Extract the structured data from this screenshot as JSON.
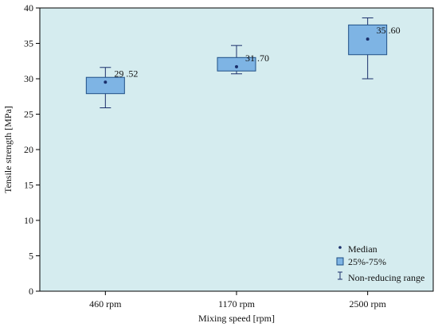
{
  "chart_data": {
    "type": "box",
    "xlabel": "Mixing speed [rpm]",
    "ylabel": "Tensile strength [MPa]",
    "ylim": [
      0,
      40
    ],
    "yticks": [
      0,
      5,
      10,
      15,
      20,
      25,
      30,
      35,
      40
    ],
    "categories": [
      "460 rpm",
      "1170 rpm",
      "2500 rpm"
    ],
    "boxes": [
      {
        "category": "460 rpm",
        "min": 25.9,
        "q1": 27.9,
        "median": 29.52,
        "q3": 30.2,
        "max": 31.6,
        "label": "29 .52"
      },
      {
        "category": "1170 rpm",
        "min": 30.7,
        "q1": 31.1,
        "median": 31.7,
        "q3": 33.0,
        "max": 34.7,
        "label": "31 .70"
      },
      {
        "category": "2500 rpm",
        "min": 30.0,
        "q1": 33.4,
        "median": 35.6,
        "q3": 37.6,
        "max": 38.6,
        "label": "35 .60"
      }
    ],
    "legend": {
      "position": "bottom-right",
      "items": [
        "Median",
        "25%-75%",
        "Non-reducing range"
      ]
    },
    "colors": {
      "plot_background": "#d5ecef",
      "box_fill": "#7eb4e4",
      "box_stroke": "#1f4f86",
      "median_dot": "#1a2f6b",
      "whisker": "#1a2f6b"
    }
  }
}
